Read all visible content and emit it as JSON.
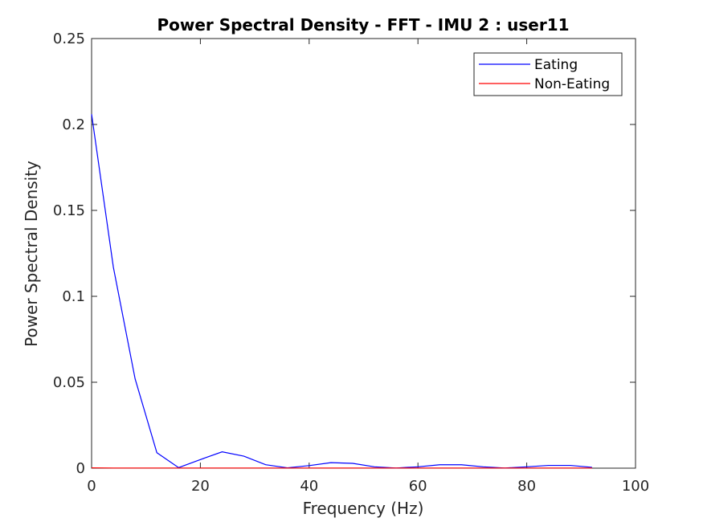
{
  "chart_data": {
    "type": "line",
    "title": "Power Spectral Density - FFT - IMU 2 :  user11",
    "xlabel": "Frequency (Hz)",
    "ylabel": "Power Spectral Density",
    "xlim": [
      0,
      100
    ],
    "ylim": [
      0,
      0.25
    ],
    "xticks": [
      0,
      20,
      40,
      60,
      80,
      100
    ],
    "yticks": [
      0,
      0.05,
      0.1,
      0.15,
      0.2,
      0.25
    ],
    "xtick_labels": [
      "0",
      "20",
      "40",
      "60",
      "80",
      "100"
    ],
    "ytick_labels": [
      "0",
      "0.05",
      "0.1",
      "0.15",
      "0.2",
      "0.25"
    ],
    "grid": false,
    "legend_position": "top-right",
    "series": [
      {
        "name": "Eating",
        "color": "#0000ff",
        "x": [
          0,
          4,
          8,
          12,
          16,
          20,
          24,
          28,
          32,
          36,
          40,
          44,
          48,
          52,
          56,
          60,
          64,
          68,
          72,
          76,
          80,
          84,
          88,
          92
        ],
        "y": [
          0.206,
          0.117,
          0.052,
          0.009,
          0.0003,
          0.005,
          0.0095,
          0.007,
          0.002,
          0.0002,
          0.0015,
          0.0032,
          0.0028,
          0.0008,
          0.0001,
          0.0008,
          0.002,
          0.002,
          0.0008,
          0.0001,
          0.0008,
          0.0016,
          0.0016,
          0.0005
        ]
      },
      {
        "name": "Non-Eating",
        "color": "#ff0000",
        "x": [
          0,
          4,
          8,
          12,
          16,
          20,
          24,
          28,
          32,
          36,
          40,
          44,
          48,
          52,
          56,
          60,
          64,
          68,
          72,
          76,
          80,
          84,
          88,
          92
        ],
        "y": [
          0.0002,
          0.0001,
          0.0001,
          0.0001,
          0.0001,
          0.0001,
          0.0001,
          0.0001,
          0.0001,
          0.0001,
          0.0001,
          0.0001,
          0.0001,
          0.0001,
          0.0001,
          0.0001,
          0.0001,
          0.0001,
          0.0001,
          0.0001,
          0.0001,
          0.0001,
          0.0001,
          0.0001
        ]
      }
    ]
  }
}
